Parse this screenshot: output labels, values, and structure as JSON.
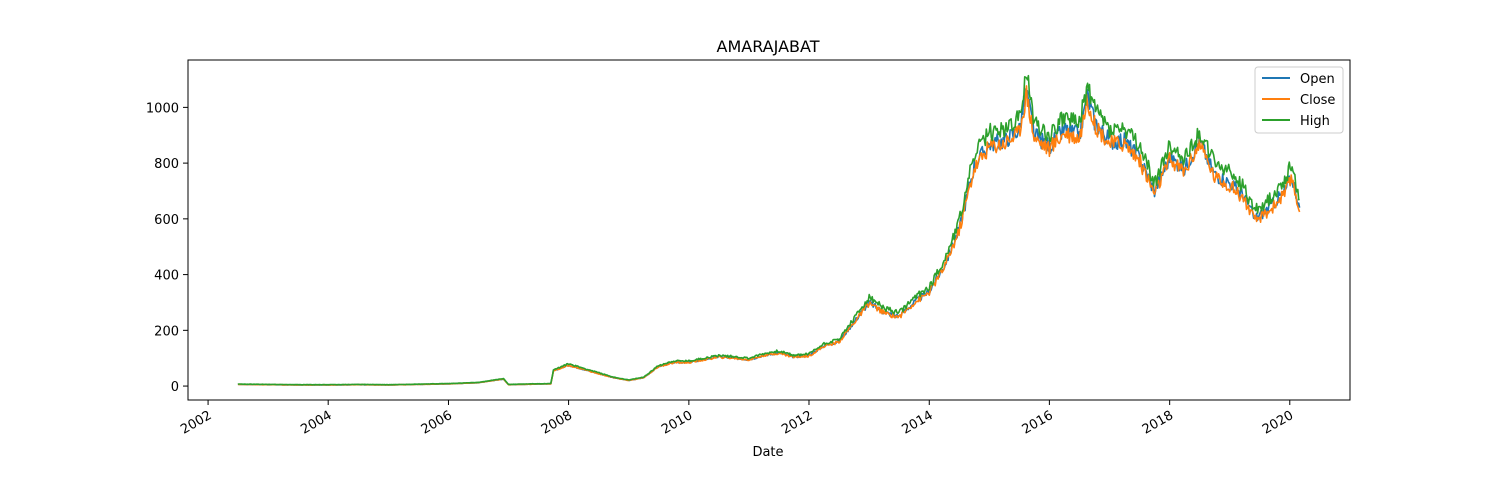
{
  "chart_data": {
    "type": "line",
    "title": "AMARAJABAT",
    "xlabel": "Date",
    "ylabel": "",
    "xlim": [
      "2001-09-01",
      "2021-01-01"
    ],
    "ylim": [
      -50,
      1170
    ],
    "x_ticks": [
      "2002",
      "2004",
      "2006",
      "2008",
      "2010",
      "2012",
      "2014",
      "2016",
      "2018",
      "2020"
    ],
    "y_ticks": [
      0,
      200,
      400,
      600,
      800,
      1000
    ],
    "grid": false,
    "legend_position": "top-right",
    "x": [
      "2002-07-01",
      "2003-01-01",
      "2003-07-01",
      "2004-01-01",
      "2004-07-01",
      "2005-01-01",
      "2005-07-01",
      "2006-01-01",
      "2006-07-01",
      "2006-12-01",
      "2007-01-01",
      "2007-06-01",
      "2007-09-15",
      "2007-10-01",
      "2008-01-01",
      "2008-04-01",
      "2008-07-01",
      "2008-10-01",
      "2009-01-01",
      "2009-04-01",
      "2009-07-01",
      "2009-10-01",
      "2010-01-01",
      "2010-04-01",
      "2010-07-01",
      "2010-10-01",
      "2011-01-01",
      "2011-04-01",
      "2011-07-01",
      "2011-10-01",
      "2012-01-01",
      "2012-04-01",
      "2012-07-01",
      "2012-10-01",
      "2013-01-01",
      "2013-04-01",
      "2013-07-01",
      "2013-10-01",
      "2014-01-01",
      "2014-04-01",
      "2014-07-01",
      "2014-10-01",
      "2015-01-01",
      "2015-04-01",
      "2015-07-01",
      "2015-08-15",
      "2015-10-01",
      "2016-01-01",
      "2016-04-01",
      "2016-07-01",
      "2016-08-20",
      "2016-10-01",
      "2017-01-01",
      "2017-04-01",
      "2017-07-01",
      "2017-10-01",
      "2018-01-01",
      "2018-04-01",
      "2018-07-01",
      "2018-10-01",
      "2019-01-01",
      "2019-04-01",
      "2019-06-01",
      "2019-09-01",
      "2019-12-01",
      "2020-01-15",
      "2020-03-01"
    ],
    "series": [
      {
        "name": "Open",
        "color": "#1f77b4",
        "values": [
          6,
          5,
          4,
          4,
          5,
          4,
          6,
          8,
          12,
          25,
          5,
          7,
          8,
          55,
          75,
          60,
          45,
          30,
          20,
          30,
          70,
          85,
          85,
          95,
          105,
          100,
          95,
          110,
          120,
          105,
          110,
          145,
          160,
          230,
          300,
          265,
          250,
          300,
          340,
          430,
          560,
          790,
          870,
          880,
          920,
          1060,
          900,
          860,
          920,
          900,
          1040,
          950,
          880,
          880,
          820,
          700,
          820,
          780,
          880,
          760,
          730,
          680,
          600,
          640,
          700,
          750,
          640
        ]
      },
      {
        "name": "Close",
        "color": "#ff7f0e",
        "values": [
          6,
          5,
          4,
          4,
          5,
          4,
          6,
          8,
          12,
          25,
          5,
          7,
          8,
          54,
          74,
          60,
          44,
          30,
          20,
          30,
          70,
          84,
          84,
          94,
          104,
          100,
          94,
          110,
          118,
          104,
          108,
          143,
          158,
          228,
          298,
          262,
          248,
          298,
          336,
          425,
          555,
          780,
          860,
          870,
          910,
          1050,
          890,
          850,
          910,
          890,
          1030,
          940,
          870,
          870,
          810,
          690,
          810,
          770,
          870,
          750,
          720,
          670,
          590,
          630,
          690,
          745,
          625
        ]
      },
      {
        "name": "High",
        "color": "#2ca02c",
        "values": [
          7,
          6,
          5,
          5,
          6,
          5,
          7,
          9,
          13,
          27,
          6,
          8,
          9,
          58,
          80,
          64,
          48,
          32,
          22,
          32,
          74,
          90,
          90,
          100,
          110,
          106,
          100,
          116,
          126,
          110,
          116,
          152,
          168,
          242,
          318,
          280,
          262,
          316,
          356,
          450,
          590,
          830,
          910,
          920,
          960,
          1120,
          950,
          900,
          970,
          940,
          1080,
          1000,
          920,
          920,
          860,
          730,
          860,
          820,
          910,
          800,
          770,
          710,
          630,
          670,
          740,
          800,
          670
        ]
      }
    ]
  }
}
